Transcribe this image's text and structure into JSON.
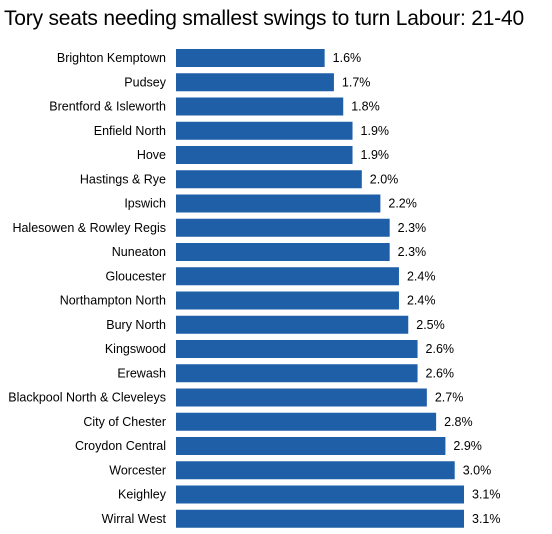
{
  "chart_data": {
    "type": "bar",
    "orientation": "horizontal",
    "title": "Tory seats needing smallest swings to turn Labour: 21-40",
    "value_suffix": "%",
    "categories": [
      "Brighton Kemptown",
      "Pudsey",
      "Brentford & Isleworth",
      "Enfield North",
      "Hove",
      "Hastings & Rye",
      "Ipswich",
      "Halesowen & Rowley Regis",
      "Nuneaton",
      "Gloucester",
      "Northampton North",
      "Bury North",
      "Kingswood",
      "Erewash",
      "Blackpool North & Cleveleys",
      "City of Chester",
      "Croydon Central",
      "Worcester",
      "Keighley",
      "Wirral West"
    ],
    "values": [
      1.6,
      1.7,
      1.8,
      1.9,
      1.9,
      2.0,
      2.2,
      2.3,
      2.3,
      2.4,
      2.4,
      2.5,
      2.6,
      2.6,
      2.7,
      2.8,
      2.9,
      3.0,
      3.1,
      3.1
    ],
    "bar_color": "#1e5fa8",
    "xlim": [
      0,
      3.1
    ],
    "grid": false,
    "legend": "none"
  }
}
